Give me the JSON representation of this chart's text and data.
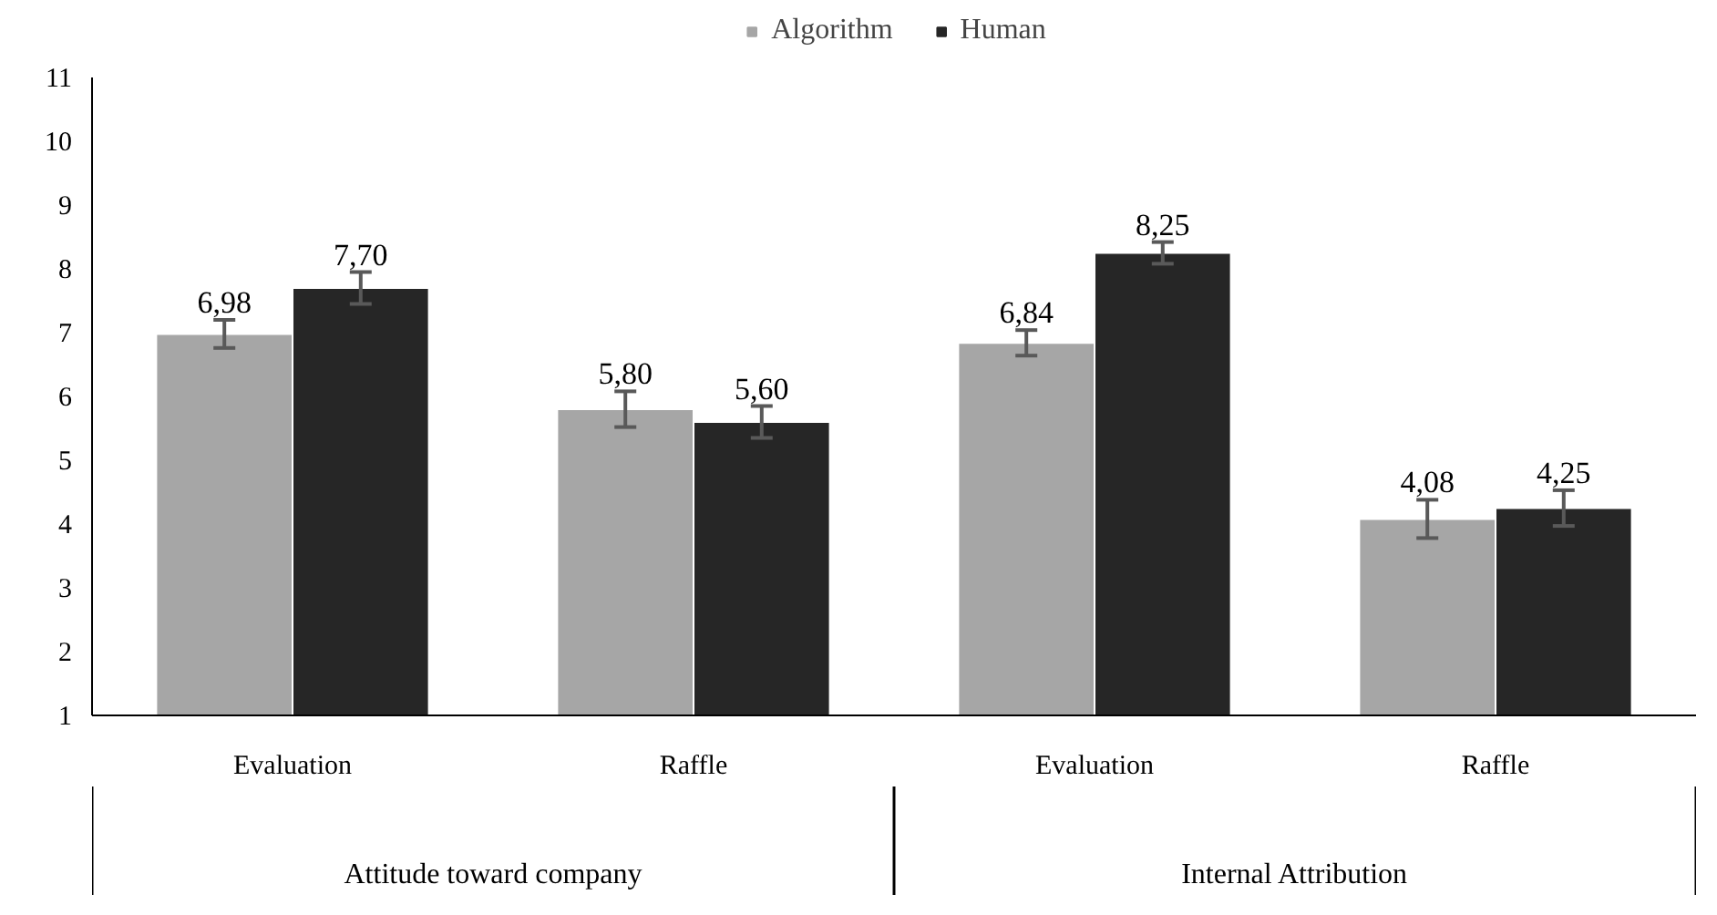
{
  "chart_data": {
    "type": "bar",
    "categories": [
      "Evaluation",
      "Raffle",
      "Evaluation",
      "Raffle"
    ],
    "series": [
      {
        "name": "Algorithm",
        "color": "#a6a6a6",
        "values": [
          6.98,
          5.8,
          6.84,
          4.08
        ],
        "value_labels": [
          "6,98",
          "5,80",
          "6,84",
          "4,08"
        ],
        "errors": [
          0.22,
          0.28,
          0.2,
          0.3
        ]
      },
      {
        "name": "Human",
        "color": "#262626",
        "values": [
          7.7,
          5.6,
          8.25,
          4.25
        ],
        "value_labels": [
          "7,70",
          "5,60",
          "8,25",
          "4,25"
        ],
        "errors": [
          0.25,
          0.25,
          0.17,
          0.28
        ]
      }
    ],
    "annotations": [
      "Attitude toward company",
      "Internal Attribution"
    ],
    "ylim": [
      1,
      11
    ],
    "yticks": [
      1,
      2,
      3,
      4,
      5,
      6,
      7,
      8,
      9,
      10,
      11
    ],
    "grid": false,
    "legend": "top"
  }
}
